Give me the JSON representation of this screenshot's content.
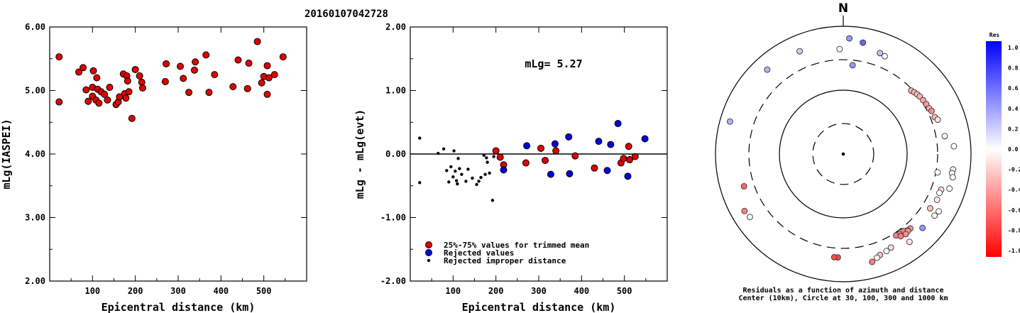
{
  "title": "20160107042728",
  "chart_data": [
    {
      "type": "scatter",
      "xlabel": "Epicentral distance (km)",
      "ylabel": "mLg(IASPEI)",
      "xlim": [
        0,
        600
      ],
      "ylim": [
        2.0,
        6.0
      ],
      "x_ticks": [
        "100",
        "200",
        "300",
        "400",
        "500"
      ],
      "y_ticks": [
        "2.00",
        "3.00",
        "4.00",
        "5.00",
        "6.00"
      ],
      "points": [
        [
          22,
          5.53
        ],
        [
          22,
          4.82
        ],
        [
          68,
          5.29
        ],
        [
          78,
          5.36
        ],
        [
          85,
          5.01
        ],
        [
          90,
          4.83
        ],
        [
          100,
          5.05
        ],
        [
          100,
          4.91
        ],
        [
          102,
          5.31
        ],
        [
          108,
          4.85
        ],
        [
          110,
          5.2
        ],
        [
          112,
          5.02
        ],
        [
          115,
          4.8
        ],
        [
          120,
          4.98
        ],
        [
          128,
          4.94
        ],
        [
          135,
          4.85
        ],
        [
          140,
          5.05
        ],
        [
          155,
          4.78
        ],
        [
          160,
          4.82
        ],
        [
          163,
          4.9
        ],
        [
          172,
          5.26
        ],
        [
          175,
          4.95
        ],
        [
          178,
          4.88
        ],
        [
          180,
          5.23
        ],
        [
          182,
          5.15
        ],
        [
          185,
          4.98
        ],
        [
          192,
          4.56
        ],
        [
          200,
          5.33
        ],
        [
          210,
          5.23
        ],
        [
          215,
          5.13
        ],
        [
          217,
          5.04
        ],
        [
          270,
          5.14
        ],
        [
          272,
          5.42
        ],
        [
          305,
          5.38
        ],
        [
          312,
          5.19
        ],
        [
          325,
          4.97
        ],
        [
          340,
          5.45
        ],
        [
          338,
          5.32
        ],
        [
          365,
          5.56
        ],
        [
          372,
          4.97
        ],
        [
          385,
          5.25
        ],
        [
          428,
          5.06
        ],
        [
          440,
          5.48
        ],
        [
          462,
          5.03
        ],
        [
          465,
          5.43
        ],
        [
          485,
          5.77
        ],
        [
          495,
          5.12
        ],
        [
          500,
          5.22
        ],
        [
          508,
          4.94
        ],
        [
          508,
          5.39
        ],
        [
          512,
          5.2
        ],
        [
          525,
          5.25
        ],
        [
          545,
          5.53
        ]
      ]
    },
    {
      "type": "scatter",
      "xlabel": "Epicentral distance (km)",
      "ylabel": "mLg - mLg(evt)",
      "xlim": [
        0,
        600
      ],
      "ylim": [
        -2.0,
        2.0
      ],
      "x_ticks": [
        "100",
        "200",
        "300",
        "400",
        "500"
      ],
      "y_ticks": [
        "-2.00",
        "-1.00",
        "0.00",
        "1.00",
        "2.00"
      ],
      "annotation": "mLg= 5.27",
      "legend": [
        "25%-75% values for trimmed mean",
        "Rejected values",
        "Rejected improper distance"
      ],
      "series": [
        {
          "name": "25%-75% values for trimmed mean",
          "color": "#e00000",
          "points": [
            [
              200,
              0.05
            ],
            [
              210,
              -0.05
            ],
            [
              218,
              -0.17
            ],
            [
              270,
              -0.14
            ],
            [
              305,
              0.09
            ],
            [
              315,
              -0.1
            ],
            [
              340,
              0.05
            ],
            [
              385,
              -0.03
            ],
            [
              430,
              -0.22
            ],
            [
              492,
              -0.14
            ],
            [
              498,
              -0.07
            ],
            [
              510,
              0.12
            ],
            [
              512,
              -0.09
            ],
            [
              525,
              -0.04
            ]
          ]
        },
        {
          "name": "Rejected values",
          "color": "#0000e0",
          "points": [
            [
              218,
              -0.25
            ],
            [
              272,
              0.13
            ],
            [
              328,
              -0.32
            ],
            [
              338,
              0.16
            ],
            [
              370,
              0.27
            ],
            [
              372,
              -0.31
            ],
            [
              440,
              0.2
            ],
            [
              460,
              -0.26
            ],
            [
              468,
              0.15
            ],
            [
              485,
              0.48
            ],
            [
              508,
              -0.35
            ],
            [
              548,
              0.24
            ]
          ]
        },
        {
          "name": "Rejected improper distance",
          "color": "#000000",
          "points": [
            [
              22,
              0.25
            ],
            [
              22,
              -0.45
            ],
            [
              65,
              0.01
            ],
            [
              78,
              0.08
            ],
            [
              85,
              -0.26
            ],
            [
              90,
              -0.44
            ],
            [
              95,
              -0.2
            ],
            [
              100,
              -0.36
            ],
            [
              102,
              0.05
            ],
            [
              105,
              -0.27
            ],
            [
              108,
              -0.42
            ],
            [
              110,
              -0.47
            ],
            [
              112,
              -0.07
            ],
            [
              115,
              -0.23
            ],
            [
              120,
              -0.32
            ],
            [
              130,
              -0.43
            ],
            [
              135,
              -0.24
            ],
            [
              145,
              -0.38
            ],
            [
              155,
              -0.48
            ],
            [
              160,
              -0.43
            ],
            [
              165,
              -0.37
            ],
            [
              172,
              -0.02
            ],
            [
              175,
              -0.32
            ],
            [
              178,
              -0.06
            ],
            [
              180,
              -0.13
            ],
            [
              185,
              -0.3
            ],
            [
              192,
              -0.73
            ],
            [
              195,
              -0.04
            ]
          ]
        }
      ]
    },
    {
      "type": "polar-scatter",
      "title": "N",
      "caption_line1": "Residuals as a function of azimuth and distance",
      "caption_line2": "Center (10km), Circle at 30, 100, 300 and 1000 km",
      "rings_km": [
        30,
        100,
        300,
        1000
      ],
      "colorbar": {
        "title": "Res",
        "range": [
          -1.0,
          1.0
        ],
        "ticks": [
          "1.0",
          "0.8",
          "0.6",
          "0.4",
          "0.2",
          "0.0",
          "-0.2",
          "-0.4",
          "-0.6",
          "-0.8",
          "-1.0"
        ],
        "color_positive": "#0000ff",
        "color_negative": "#ff0000"
      },
      "points": [
        {
          "az": 3,
          "dist": 650,
          "res": 0.4
        },
        {
          "az": 10,
          "dist": 590,
          "res": 0.6
        },
        {
          "az": 337,
          "dist": 560,
          "res": 0.2
        },
        {
          "az": 358,
          "dist": 440,
          "res": 0.0
        },
        {
          "az": 20,
          "dist": 480,
          "res": 0.25
        },
        {
          "az": 23,
          "dist": 460,
          "res": 0.0
        },
        {
          "az": 318,
          "dist": 600,
          "res": 0.3
        },
        {
          "az": 286,
          "dist": 700,
          "res": 0.3
        },
        {
          "az": 240,
          "dist": 610,
          "res": -0.5
        },
        {
          "az": 236,
          "dist": 580,
          "res": 0.0
        },
        {
          "az": 6,
          "dist": 250,
          "res": 0.4
        },
        {
          "az": 252,
          "dist": 430,
          "res": -0.6
        },
        {
          "az": 101,
          "dist": 320,
          "res": 0.0
        },
        {
          "az": 47,
          "dist": 285,
          "res": -0.3
        },
        {
          "az": 49,
          "dist": 297,
          "res": -0.3
        },
        {
          "az": 51,
          "dist": 307,
          "res": -0.25
        },
        {
          "az": 53,
          "dist": 315,
          "res": -0.3
        },
        {
          "az": 56,
          "dist": 322,
          "res": -0.35
        },
        {
          "az": 59,
          "dist": 328,
          "res": -0.4
        },
        {
          "az": 62,
          "dist": 333,
          "res": -0.3
        },
        {
          "az": 64,
          "dist": 345,
          "res": -0.45
        },
        {
          "az": 68,
          "dist": 350,
          "res": -0.3
        },
        {
          "az": 70,
          "dist": 375,
          "res": -0.1
        },
        {
          "az": 80,
          "dist": 410,
          "res": 0.0
        },
        {
          "az": 86,
          "dist": 545,
          "res": 0.0
        },
        {
          "az": 98,
          "dist": 545,
          "res": -0.05
        },
        {
          "az": 100,
          "dist": 535,
          "res": -0.05
        },
        {
          "az": 102,
          "dist": 565,
          "res": 0.0
        },
        {
          "az": 108,
          "dist": 560,
          "res": 0.0
        },
        {
          "az": 110,
          "dist": 428,
          "res": -0.15
        },
        {
          "az": 112,
          "dist": 420,
          "res": 0.0
        },
        {
          "az": 116,
          "dist": 430,
          "res": -0.1
        },
        {
          "az": 121,
          "dist": 555,
          "res": 0.0
        },
        {
          "az": 122,
          "dist": 402,
          "res": -0.25
        },
        {
          "az": 124,
          "dist": 530,
          "res": -0.05
        },
        {
          "az": 133,
          "dist": 497,
          "res": 0.4
        },
        {
          "az": 138,
          "dist": 370,
          "res": -0.45
        },
        {
          "az": 140,
          "dist": 365,
          "res": -0.45
        },
        {
          "az": 142,
          "dist": 340,
          "res": -0.5
        },
        {
          "az": 145,
          "dist": 340,
          "res": -0.45
        },
        {
          "az": 147,
          "dist": 330,
          "res": -0.5
        },
        {
          "az": 140,
          "dist": 375,
          "res": -0.45
        },
        {
          "az": 142,
          "dist": 390,
          "res": -0.45
        },
        {
          "az": 145,
          "dist": 370,
          "res": -0.5
        },
        {
          "az": 143,
          "dist": 528,
          "res": -0.1
        },
        {
          "az": 153,
          "dist": 440,
          "res": -0.15
        },
        {
          "az": 156,
          "dist": 460,
          "res": 0.0
        },
        {
          "az": 160,
          "dist": 480,
          "res": -0.25
        },
        {
          "az": 162,
          "dist": 510,
          "res": -0.05
        },
        {
          "az": 165,
          "dist": 560,
          "res": -0.5
        },
        {
          "az": 183,
          "dist": 418,
          "res": -0.7
        },
        {
          "az": 185,
          "dist": 418,
          "res": -0.7
        }
      ]
    }
  ]
}
